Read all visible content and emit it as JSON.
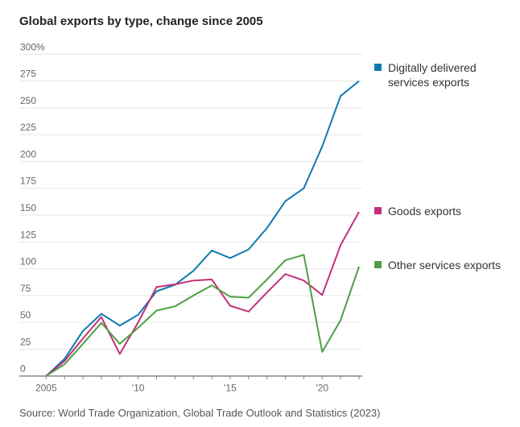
{
  "chart_data": {
    "type": "line",
    "title": "Global exports by type, change since 2005",
    "source": "Source: World Trade Organization, Global Trade Outlook and Statistics (2023)",
    "x": [
      2005,
      2006,
      2007,
      2008,
      2009,
      2010,
      2011,
      2012,
      2013,
      2014,
      2015,
      2016,
      2017,
      2018,
      2019,
      2020,
      2021,
      2022
    ],
    "x_ticks": [
      {
        "value": 2005,
        "label": "2005"
      },
      {
        "value": 2010,
        "label": "'10"
      },
      {
        "value": 2015,
        "label": "'15"
      },
      {
        "value": 2020,
        "label": "'20"
      }
    ],
    "y_ticks": [
      {
        "value": 0,
        "label": "0"
      },
      {
        "value": 25,
        "label": "25"
      },
      {
        "value": 50,
        "label": "50"
      },
      {
        "value": 75,
        "label": "75"
      },
      {
        "value": 100,
        "label": "100"
      },
      {
        "value": 125,
        "label": "125"
      },
      {
        "value": 150,
        "label": "150"
      },
      {
        "value": 175,
        "label": "175"
      },
      {
        "value": 200,
        "label": "200"
      },
      {
        "value": 225,
        "label": "225"
      },
      {
        "value": 250,
        "label": "250"
      },
      {
        "value": 275,
        "label": "275"
      },
      {
        "value": 300,
        "label": "300%"
      }
    ],
    "ylim": [
      0,
      300
    ],
    "xlim": [
      2005,
      2022
    ],
    "grid": true,
    "legend": "right",
    "series": [
      {
        "name": "Digitally delivered services exports",
        "color": "#0f7bb0",
        "values": [
          0,
          16,
          42,
          58,
          47,
          57,
          79,
          85,
          98,
          117,
          110,
          118,
          138,
          163,
          175,
          214,
          261,
          275
        ]
      },
      {
        "name": "Goods exports",
        "color": "#c2307a",
        "values": [
          0,
          14,
          35,
          55,
          20.5,
          50,
          83,
          85.5,
          89,
          90,
          65.5,
          60,
          78,
          95,
          89,
          75.5,
          122,
          153
        ]
      },
      {
        "name": "Other services exports",
        "color": "#4f9f45",
        "values": [
          0,
          11,
          30,
          49.5,
          30,
          45,
          61,
          65,
          75,
          84.5,
          74,
          73,
          90,
          108,
          113,
          22.5,
          52,
          102
        ]
      }
    ]
  }
}
